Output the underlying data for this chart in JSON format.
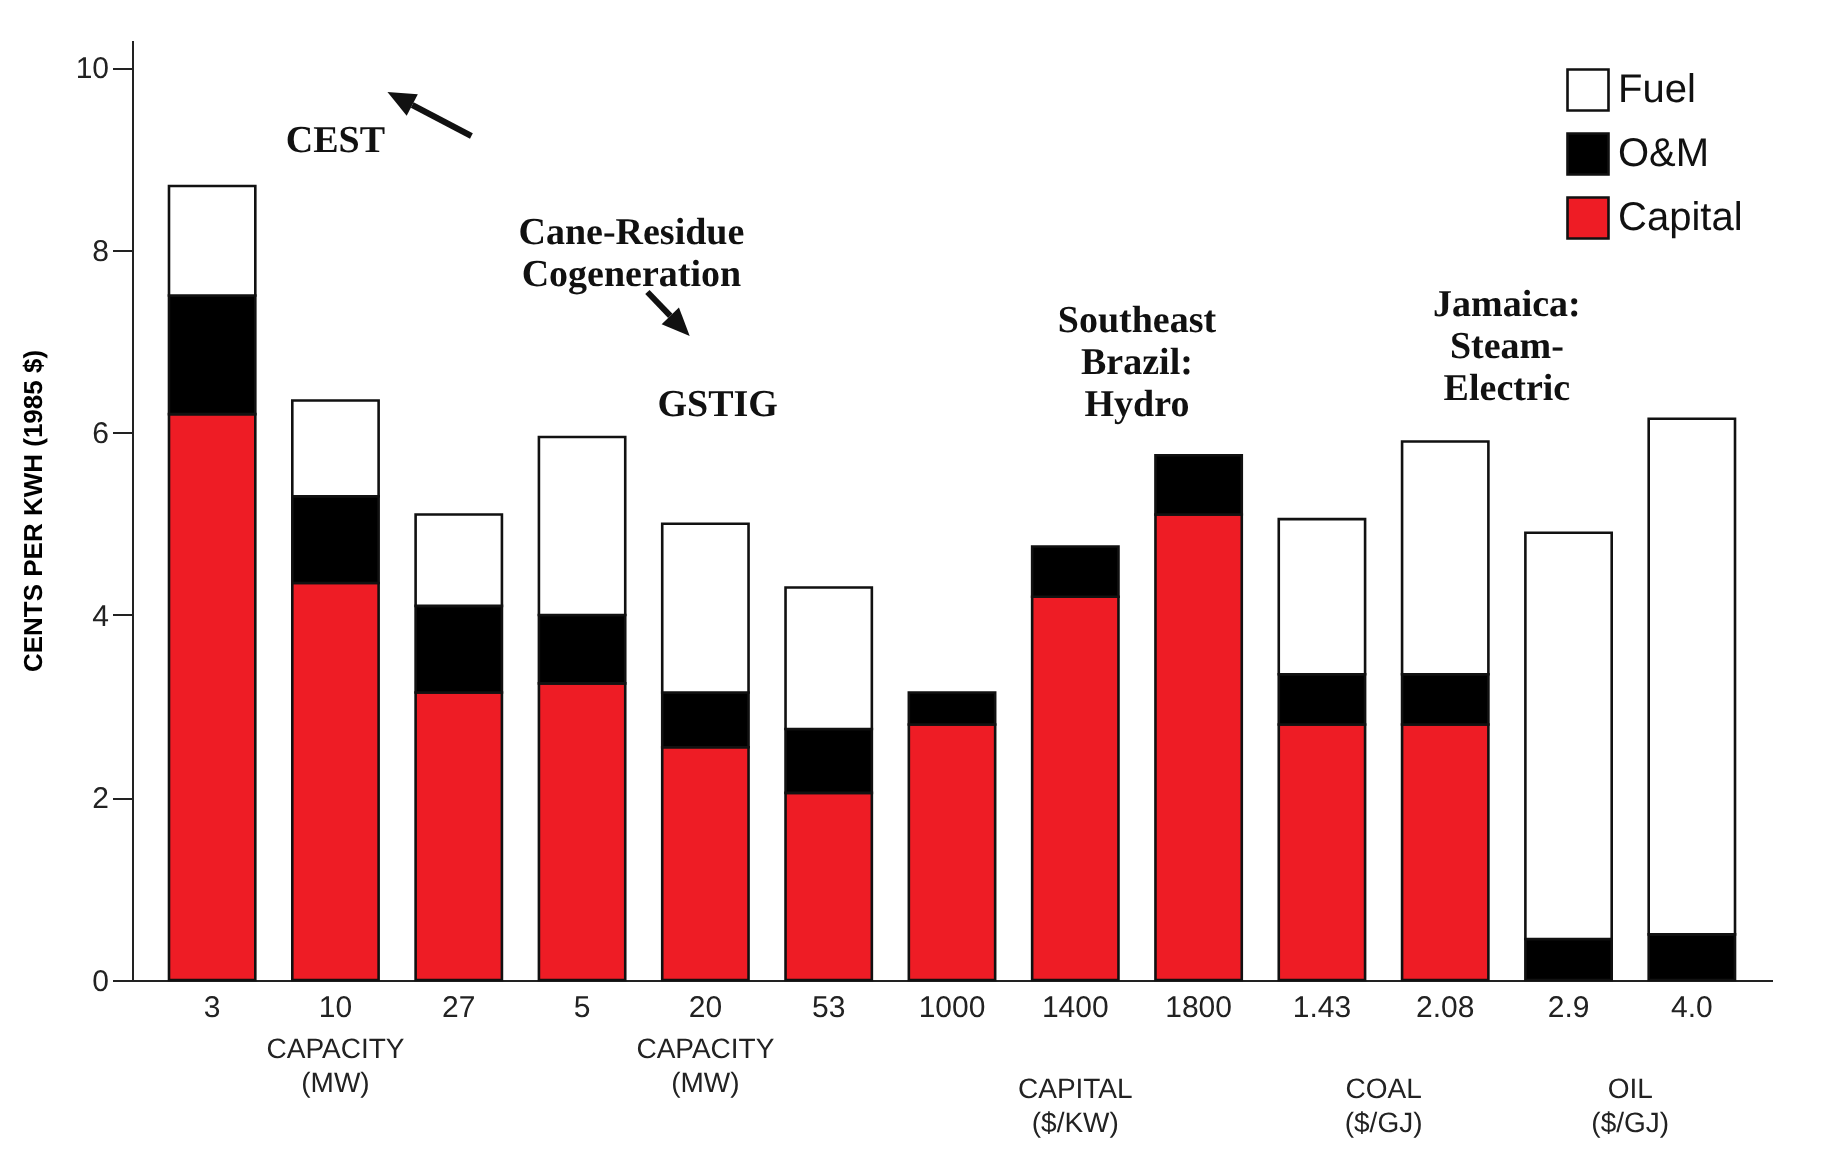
{
  "chart_data": {
    "type": "bar",
    "stacked": true,
    "ylabel": "CENTS PER KWH (1985 $)",
    "categories": [
      "3",
      "10",
      "27",
      "5",
      "20",
      "53",
      "1000",
      "1400",
      "1800",
      "1.43",
      "2.08",
      "2.9",
      "4.0"
    ],
    "series": [
      {
        "name": "Capital",
        "color": "#ee1c25",
        "values": [
          6.2,
          4.35,
          3.15,
          3.25,
          2.55,
          2.05,
          2.8,
          4.2,
          5.1,
          2.8,
          2.8,
          null,
          null
        ]
      },
      {
        "name": "O&M",
        "color": "#000000",
        "values": [
          1.3,
          0.95,
          0.95,
          0.75,
          0.6,
          0.7,
          0.35,
          0.55,
          0.65,
          0.55,
          0.55,
          0.45,
          0.5
        ]
      },
      {
        "name": "Fuel",
        "color": "#ffffff",
        "values": [
          1.2,
          1.05,
          1.0,
          1.95,
          1.85,
          1.55,
          null,
          null,
          null,
          1.7,
          2.55,
          4.45,
          5.65
        ]
      }
    ],
    "ylim": [
      0,
      10.3
    ],
    "yticks": [
      0,
      2,
      4,
      6,
      8,
      10
    ],
    "grid": false,
    "legend": "top right",
    "annotations": [
      "CEST",
      "Cane-Residue\nCogeneration",
      "GSTIG",
      "Southeast\nBrazil:\nHydro",
      "Jamaica:\nSteam-\nElectric",
      "CAPACITY\n(MW)",
      "CAPACITY\n(MW)",
      "CAPITAL\n($/KW)",
      "COAL\n($/GJ)",
      "OIL\n($/GJ)"
    ]
  }
}
